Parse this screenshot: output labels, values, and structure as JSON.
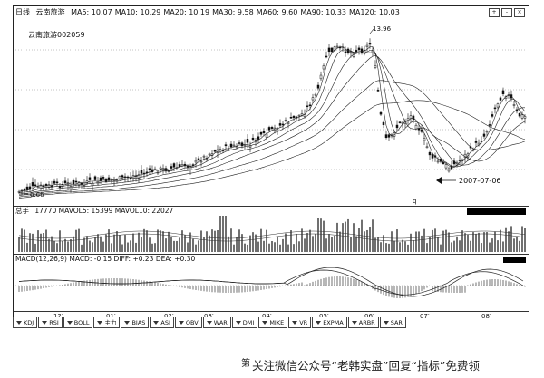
{
  "header": {
    "period": "日线",
    "stock_name": "云南旅游",
    "ma_items": [
      {
        "label": "MA5:",
        "value": "10.07"
      },
      {
        "label": "MA10:",
        "value": "10.29"
      },
      {
        "label": "MA20:",
        "value": "10.19"
      },
      {
        "label": "MA30:",
        "value": "9.58"
      },
      {
        "label": "MA60:",
        "value": "9.60"
      },
      {
        "label": "MA90:",
        "value": "10.33"
      },
      {
        "label": "MA120:",
        "value": "10.03"
      }
    ]
  },
  "stock_code_label": "云南旅游002059",
  "annotations": {
    "high": "13.96",
    "low": "6.66",
    "date": "2007-07-06",
    "q_mark": "q"
  },
  "volume_panel": {
    "label": "总手",
    "values": "17770 MAVOL5: 15399 MAVOL10: 22027"
  },
  "macd_panel": {
    "label": "MACD(12,26,9) MACD: -0.15 DIFF: +0.23 DEA: +0.30"
  },
  "x_axis_labels": [
    "12'",
    "01'",
    "02'",
    "03'",
    "04'",
    "05'",
    "06'",
    "07'",
    "08'"
  ],
  "indicator_tabs": [
    "KDJ",
    "RSI",
    "BOLL",
    "主力",
    "BIAS",
    "ASI",
    "OBV",
    "WAR",
    "DMI",
    "MIKE",
    "VR",
    "EXPMA",
    "ARBR",
    "SAR"
  ],
  "footer_left": "第",
  "watermark": "关注微信公众号“老韩实盘”回复“指标”免费领",
  "colors": {
    "ink": "#111111",
    "paper": "#ffffff"
  }
}
